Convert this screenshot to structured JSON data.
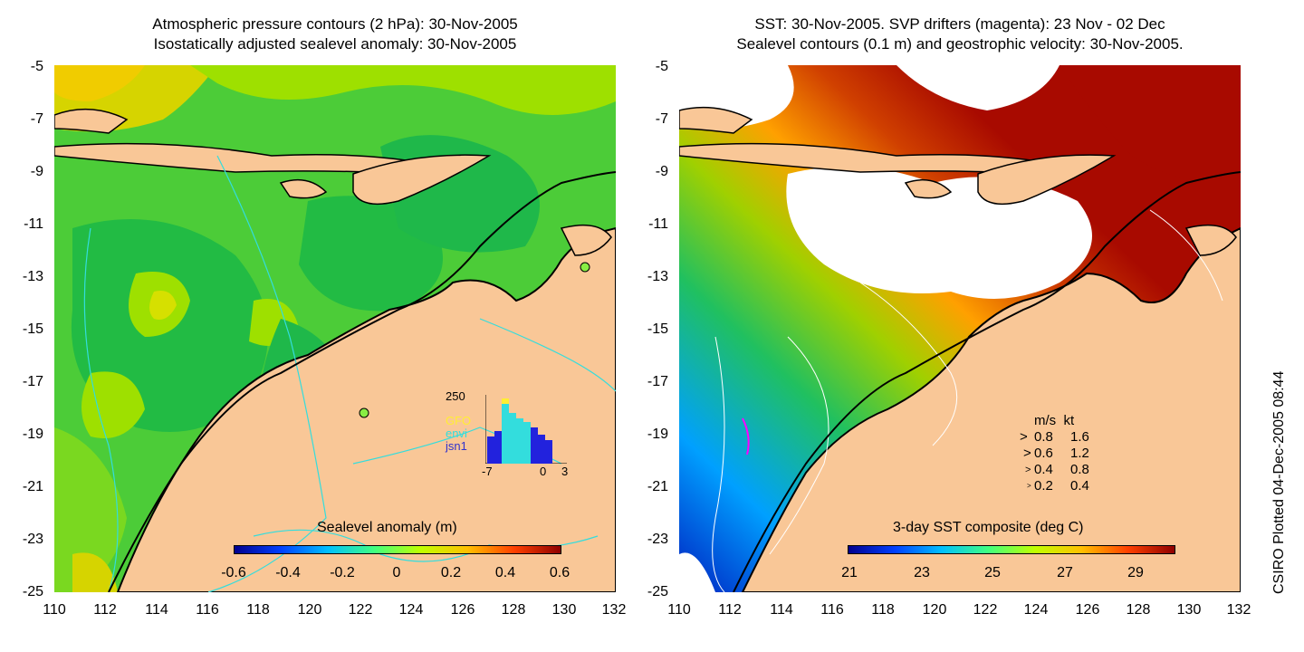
{
  "left_panel": {
    "title_line1": "Atmospheric pressure contours (2 hPa): 30-Nov-2005",
    "title_line2": "Isostatically adjusted sealevel anomaly: 30-Nov-2005",
    "colorbar": {
      "title": "Sealevel anomaly (m)",
      "labels": [
        "-0.6",
        "-0.4",
        "-0.2",
        "0",
        "0.2",
        "0.4",
        "0.6"
      ]
    },
    "inset": {
      "ymax_label": "250",
      "series": [
        "GFO",
        "envi",
        "jsn1"
      ],
      "series_colors": [
        "#ffee33",
        "#33dddd",
        "#3333cc"
      ],
      "x_labels": [
        "-7",
        "0",
        "3"
      ]
    }
  },
  "right_panel": {
    "title_line1": "SST: 30-Nov-2005. SVP drifters (magenta): 23 Nov - 02 Dec",
    "title_line2": "Sealevel contours (0.1 m) and geostrophic velocity: 30-Nov-2005.",
    "colorbar": {
      "title": "3-day SST composite (deg C)",
      "labels": [
        "21",
        "23",
        "25",
        "27",
        "29"
      ]
    },
    "velocity_legend": {
      "header": "m/s  kt",
      "rows": [
        {
          "ms": "0.8",
          "kt": "1.6"
        },
        {
          "ms": "0.6",
          "kt": "1.2"
        },
        {
          "ms": "0.4",
          "kt": "0.8"
        },
        {
          "ms": "0.2",
          "kt": "0.4"
        }
      ]
    },
    "credit": "CSIRO Plotted 04-Dec-2005 08:44"
  },
  "y_ticks": [
    "-5",
    "-7",
    "-9",
    "-11",
    "-13",
    "-15",
    "-17",
    "-19",
    "-21",
    "-23",
    "-25"
  ],
  "x_ticks": [
    "110",
    "112",
    "114",
    "116",
    "118",
    "120",
    "122",
    "124",
    "126",
    "128",
    "130",
    "132"
  ],
  "colors": {
    "land": "#f9c797",
    "sealevel_bg": "#44cc33",
    "sst_warm": "#a80a00",
    "contour": "#33dddd"
  }
}
